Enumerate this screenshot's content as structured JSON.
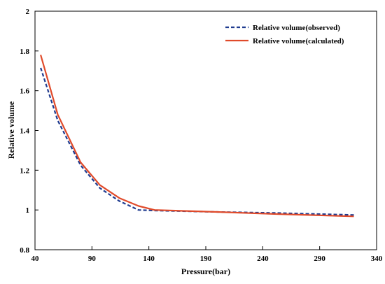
{
  "chart_data": {
    "type": "line",
    "title": "",
    "xlabel": "Pressure(bar)",
    "ylabel": "Relative volume",
    "xlim": [
      40,
      340
    ],
    "ylim": [
      0.8,
      2.0
    ],
    "xticks": [
      40,
      90,
      140,
      190,
      240,
      290,
      340
    ],
    "yticks": [
      0.8,
      1,
      1.2,
      1.4,
      1.6,
      1.8,
      2
    ],
    "yticklabels": [
      "0.8",
      "1",
      "1.2",
      "1.4",
      "1.6",
      "1.8",
      "2"
    ],
    "grid": false,
    "legend_position": "top-right",
    "series": [
      {
        "name": "Relative volume(observed)",
        "style": "dashed",
        "color": "#1f3b8f",
        "x": [
          45,
          60,
          80,
          97,
          114,
          131,
          145,
          200,
          250,
          320
        ],
        "y": [
          1.715,
          1.45,
          1.225,
          1.11,
          1.045,
          1.0,
          0.997,
          0.99,
          0.985,
          0.975
        ]
      },
      {
        "name": "Relative volume(calculated)",
        "style": "solid",
        "color": "#e04a2a",
        "x": [
          45,
          60,
          80,
          97,
          114,
          131,
          145,
          200,
          250,
          320
        ],
        "y": [
          1.78,
          1.48,
          1.24,
          1.125,
          1.06,
          1.02,
          1.0,
          0.99,
          0.98,
          0.968
        ]
      }
    ]
  }
}
